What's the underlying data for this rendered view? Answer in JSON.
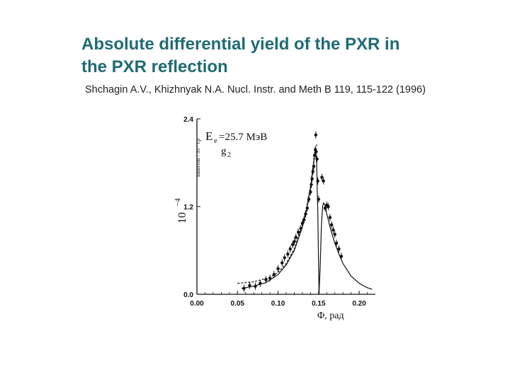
{
  "slide": {
    "title_line1": "Absolute differential yield of the PXR in",
    "title_line2": "the PXR reflection",
    "citation": "Shchagin A.V., Khizhnyak N.A.  Nucl. Instr. and Meth B 119, 115-122 (1996)"
  },
  "colors": {
    "title": "#1f6b73",
    "ink": "#111111"
  },
  "chart_data": {
    "type": "scatter",
    "xlim": [
      0.0,
      0.22
    ],
    "ylim": [
      0.0,
      2.4
    ],
    "x_ticks": [
      "0.00",
      "0.05",
      "0.10",
      "0.15",
      "0.20"
    ],
    "x_tick_values": [
      0.0,
      0.05,
      0.1,
      0.15,
      0.2
    ],
    "y_ticks": [
      "0.0",
      "1.2",
      "2.4"
    ],
    "y_tick_values": [
      0.0,
      1.2,
      2.4
    ],
    "xlabel": "Φ, рад",
    "ylabel_multiplier": "10",
    "ylabel_exponent": "−4",
    "ylabel_units": "квантов / эл · ср",
    "annotation_energy": "E",
    "annotation_energy_sub": "e",
    "annotation_energy_value": "=25.7  МэВ",
    "annotation_reflection": "g",
    "annotation_reflection_sub": "2",
    "series": [
      {
        "style": "points",
        "x": [
          0.058,
          0.065,
          0.072,
          0.078,
          0.085,
          0.09,
          0.095,
          0.1,
          0.105,
          0.108,
          0.112,
          0.115,
          0.118,
          0.12,
          0.122,
          0.125,
          0.128,
          0.13,
          0.132,
          0.134,
          0.136,
          0.138,
          0.14,
          0.141,
          0.142,
          0.143,
          0.144,
          0.145,
          0.146,
          0.1465,
          0.147,
          0.148,
          0.149,
          0.15,
          0.154,
          0.156,
          0.158,
          0.16,
          0.162,
          0.164,
          0.166,
          0.168,
          0.17,
          0.172,
          0.175,
          0.178
        ],
        "y": [
          0.08,
          0.12,
          0.11,
          0.15,
          0.2,
          0.22,
          0.27,
          0.35,
          0.43,
          0.5,
          0.55,
          0.62,
          0.68,
          0.72,
          0.78,
          0.85,
          0.9,
          0.97,
          1.02,
          1.1,
          1.18,
          1.3,
          1.4,
          1.5,
          1.58,
          1.68,
          1.75,
          1.9,
          1.98,
          2.18,
          1.95,
          1.85,
          1.55,
          1.3,
          1.6,
          1.55,
          1.18,
          1.22,
          1.2,
          1.05,
          0.95,
          0.88,
          0.82,
          0.7,
          0.62,
          0.52
        ],
        "error_bars": true
      },
      {
        "style": "solid",
        "x": [
          0.055,
          0.07,
          0.085,
          0.1,
          0.11,
          0.12,
          0.13,
          0.135,
          0.14,
          0.143,
          0.146,
          0.1475,
          0.149,
          0.1505,
          0.152,
          0.1535,
          0.155,
          0.156,
          0.158,
          0.16,
          0.165,
          0.17,
          0.175,
          0.18,
          0.19,
          0.2,
          0.21,
          0.216
        ],
        "y": [
          0.08,
          0.11,
          0.16,
          0.27,
          0.4,
          0.6,
          0.92,
          1.15,
          1.45,
          1.72,
          1.98,
          1.8,
          1.1,
          0.0,
          0.4,
          0.95,
          1.2,
          1.25,
          1.22,
          1.1,
          0.88,
          0.7,
          0.55,
          0.42,
          0.25,
          0.15,
          0.09,
          0.07
        ]
      },
      {
        "style": "dashed",
        "x": [
          0.05,
          0.07,
          0.09,
          0.1,
          0.11,
          0.12,
          0.13,
          0.135,
          0.14,
          0.143,
          0.146,
          0.148
        ],
        "y": [
          0.15,
          0.17,
          0.23,
          0.3,
          0.42,
          0.62,
          0.95,
          1.18,
          1.48,
          1.75,
          2.0,
          2.05
        ]
      }
    ]
  }
}
